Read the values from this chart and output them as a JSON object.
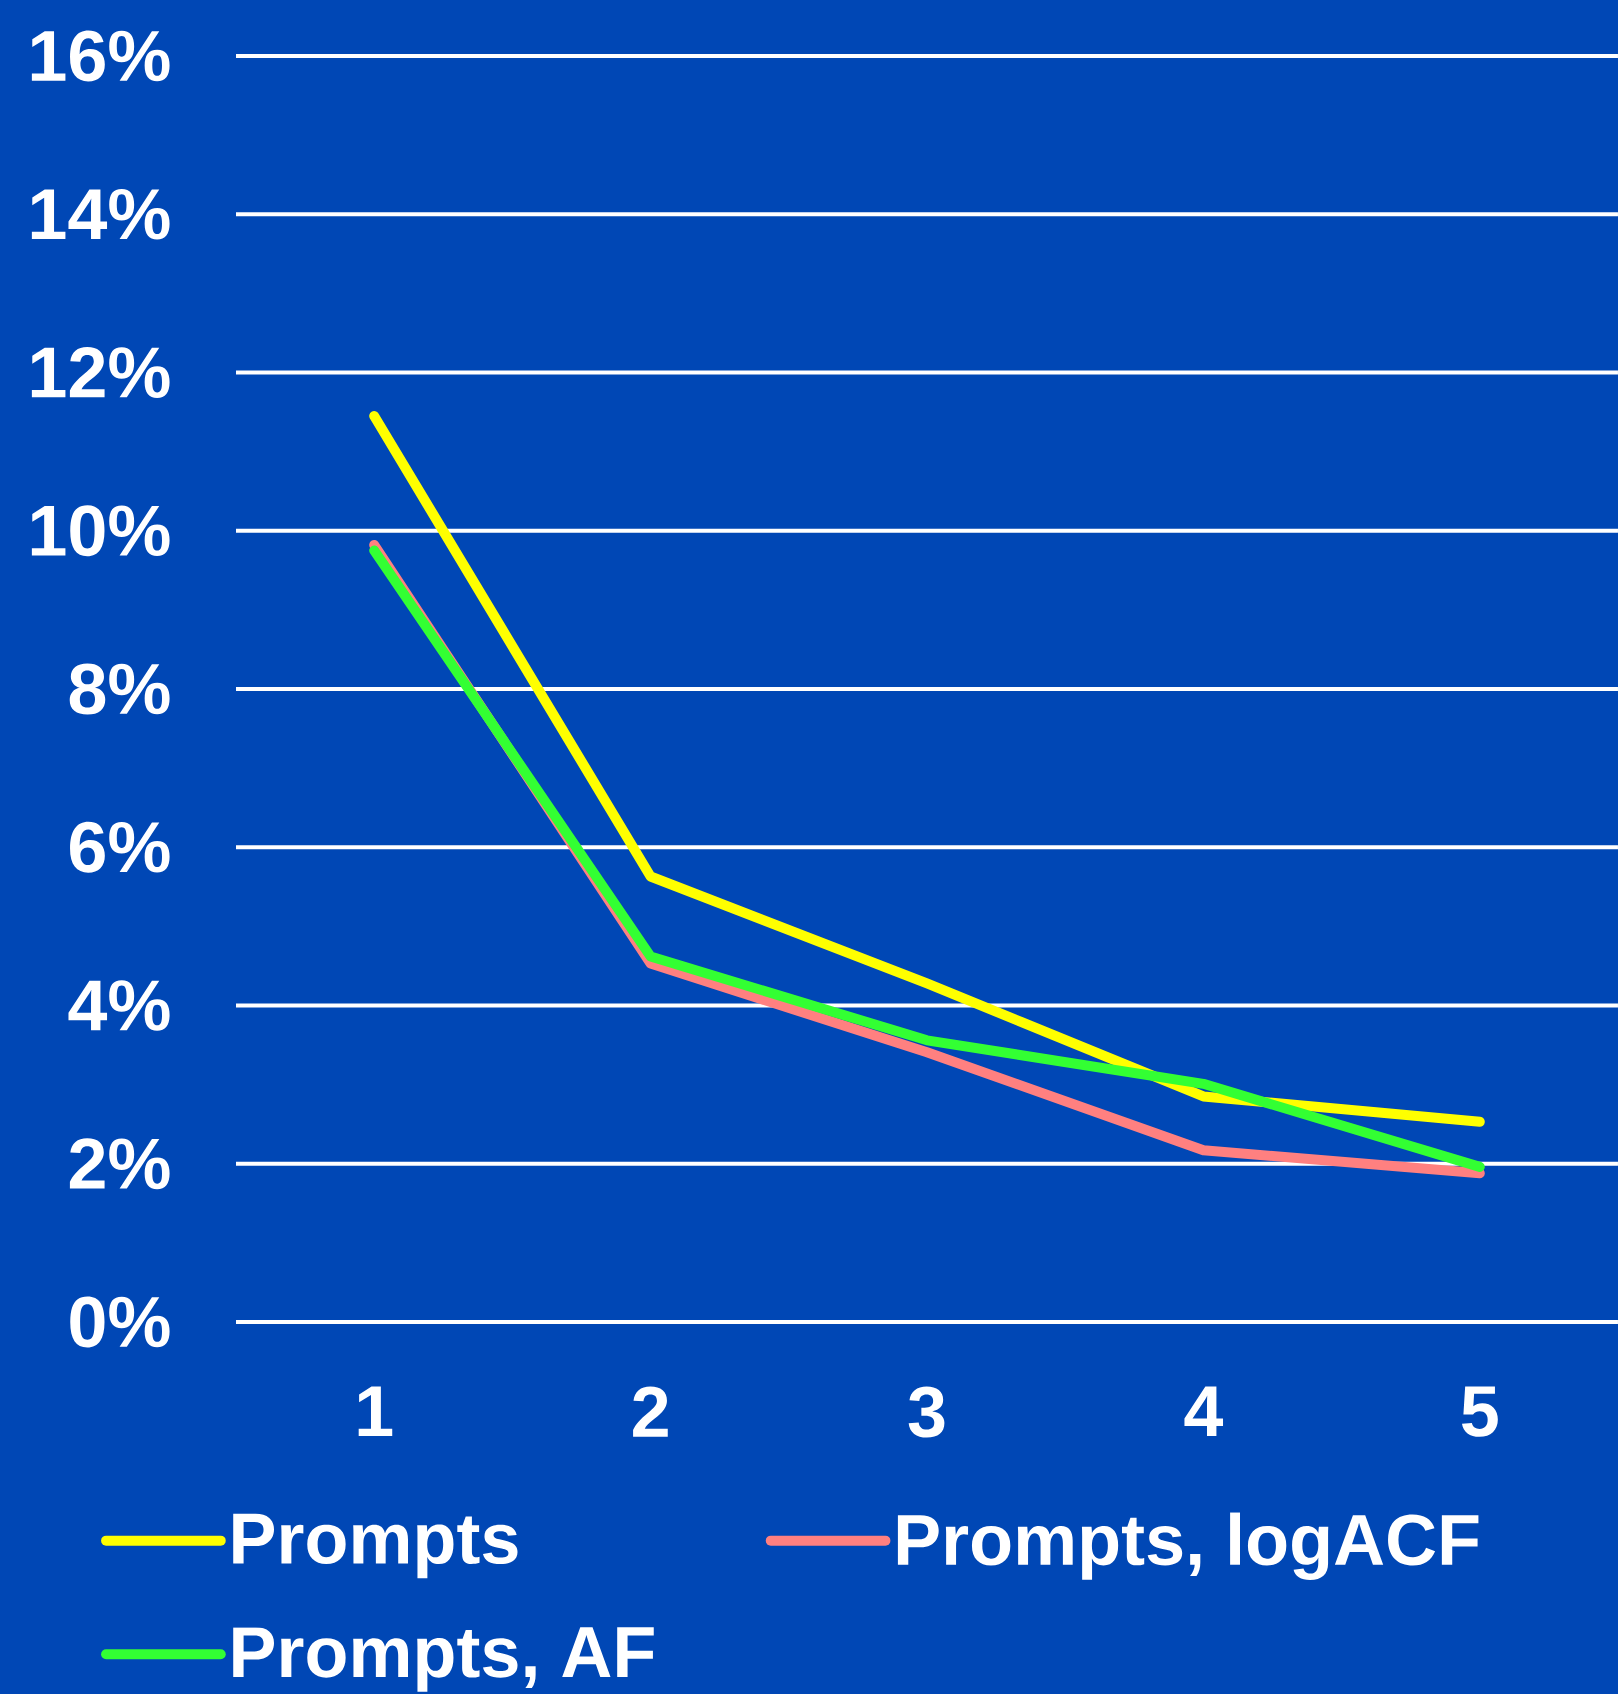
{
  "chart_data": {
    "type": "line",
    "categories": [
      "1",
      "2",
      "3",
      "4",
      "5"
    ],
    "series": [
      {
        "name": "Prompts",
        "color": "#ffff00",
        "values": [
          11.45,
          5.63,
          4.28,
          2.85,
          2.53
        ]
      },
      {
        "name": "Prompts, logACF",
        "color": "#ff8080",
        "values": [
          9.82,
          4.53,
          3.41,
          2.17,
          1.88
        ]
      },
      {
        "name": "Prompts, AF",
        "color": "#33ff33",
        "values": [
          9.75,
          4.62,
          3.56,
          3.01,
          1.96
        ]
      }
    ],
    "ylim": [
      0,
      16
    ],
    "yticks": [
      {
        "value": 0,
        "label": "0%"
      },
      {
        "value": 2,
        "label": "2%"
      },
      {
        "value": 4,
        "label": "4%"
      },
      {
        "value": 6,
        "label": "6%"
      },
      {
        "value": 8,
        "label": "8%"
      },
      {
        "value": 10,
        "label": "10%"
      },
      {
        "value": 12,
        "label": "12%"
      },
      {
        "value": 14,
        "label": "14%"
      },
      {
        "value": 16,
        "label": "16%"
      }
    ],
    "grid": "y",
    "legend": "bottom",
    "line_style": "solid"
  }
}
